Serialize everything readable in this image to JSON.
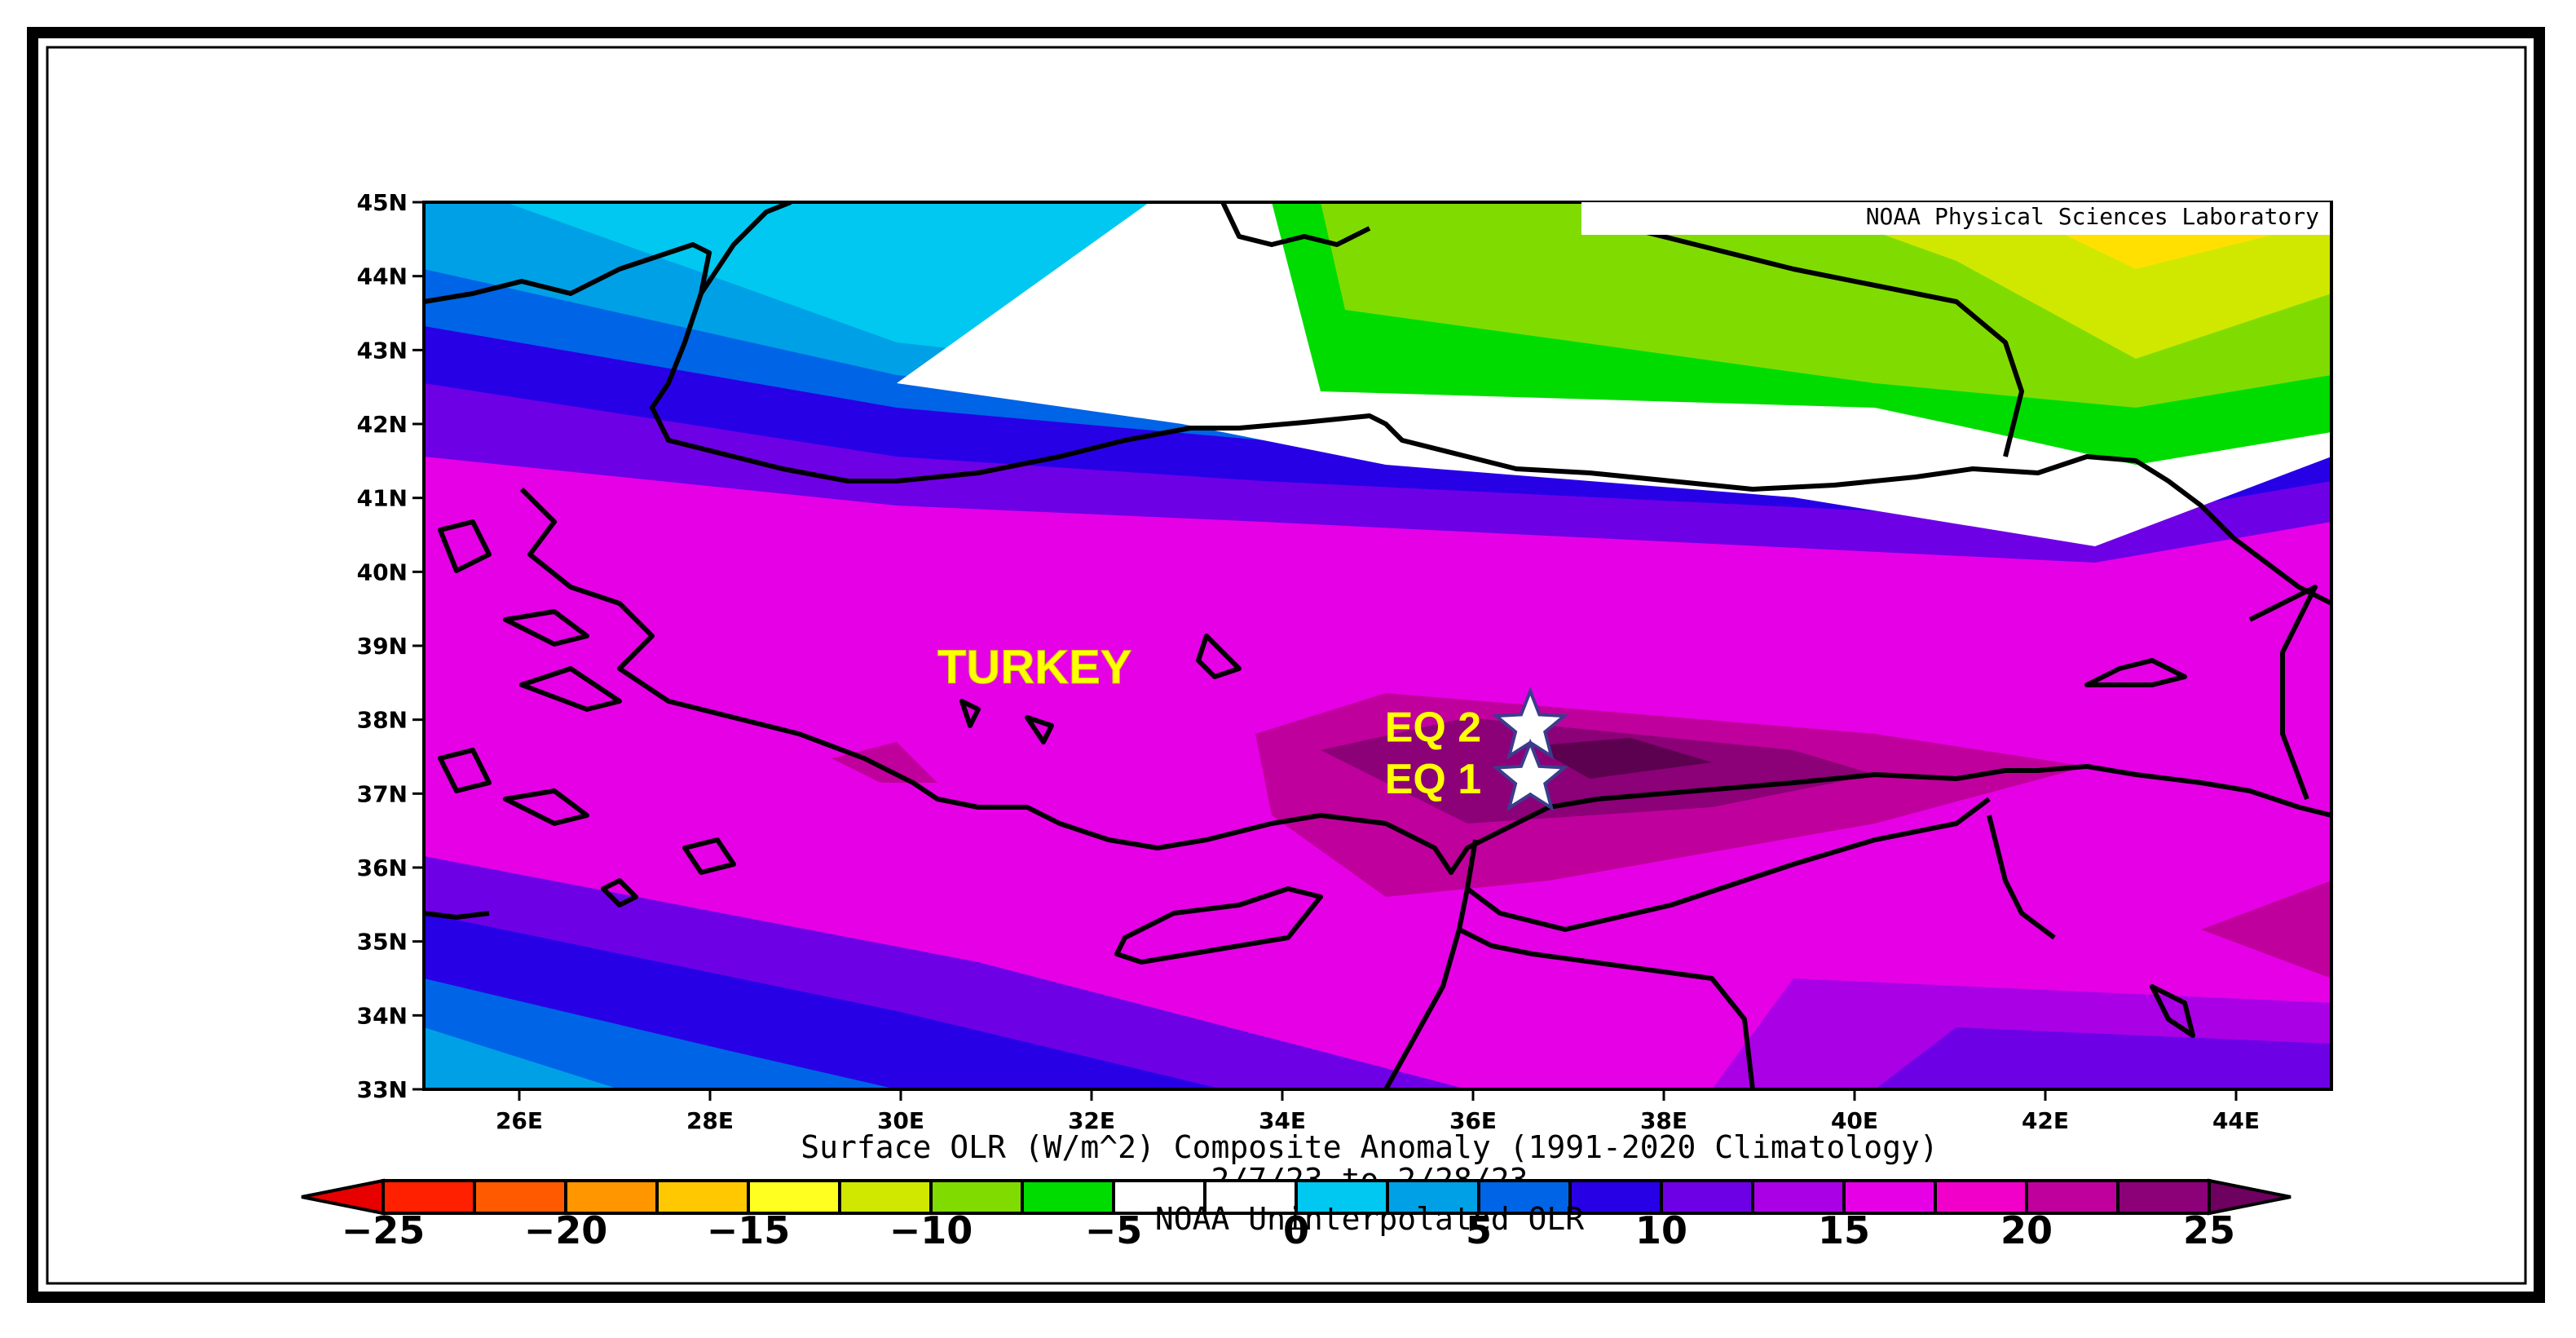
{
  "map": {
    "provider_label": "NOAA Physical Sciences Laboratory",
    "country_label": "TURKEY",
    "caption_line1": "Surface OLR (W/m^2) Composite Anomaly (1991-2020 Climatology)",
    "caption_line2": "2/7/23  to 2/28/23",
    "caption_line3": "NOAA Uninterpolated OLR",
    "lat_labels": [
      "45N",
      "44N",
      "43N",
      "42N",
      "41N",
      "40N",
      "39N",
      "38N",
      "37N",
      "36N",
      "35N",
      "34N",
      "33N"
    ],
    "lon_labels": [
      "26E",
      "28E",
      "30E",
      "32E",
      "34E",
      "36E",
      "38E",
      "40E",
      "42E",
      "44E"
    ],
    "markers": [
      {
        "label": "EQ 2",
        "lat": 37.9,
        "lon": 36.6
      },
      {
        "label": "EQ 1",
        "lat": 37.2,
        "lon": 36.6
      }
    ]
  },
  "colorbar": {
    "tick_labels": [
      "−25",
      "−20",
      "−15",
      "−10",
      "−5",
      "0",
      "5",
      "10",
      "15",
      "20",
      "25"
    ],
    "colors": [
      "#ff2000",
      "#ff5a00",
      "#ff9600",
      "#ffc800",
      "#ffff20",
      "#d0e800",
      "#80dc00",
      "#00dc00",
      "#ffffff",
      "#ffffff",
      "#00c8f0",
      "#00a0e6",
      "#0064e6",
      "#2800e6",
      "#6e00e6",
      "#aa00e6",
      "#e600e6",
      "#f000c8",
      "#c0009c",
      "#8c0078"
    ]
  },
  "colors": {
    "frame": "#000000",
    "label_yellow": "#ffff00"
  }
}
